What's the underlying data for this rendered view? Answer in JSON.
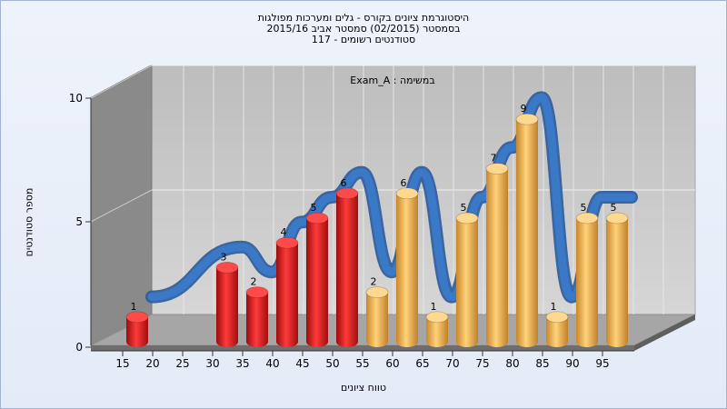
{
  "header": {
    "title_line1": "היסטוגרמת ציונים בקורס - גלים ומערכות מפולגות",
    "title_line2": "בסמסטר  (02/2015)  סמסטר אביב 2015/16",
    "title_line3": "סטודנטים רשומים - 117"
  },
  "chart_data": {
    "type": "bar",
    "annotation": "Exam_A : במשימה",
    "xlabel": "טווח ציונים",
    "ylabel": "מספר סטודנטים",
    "ylim": [
      0,
      10
    ],
    "yticks": [
      0,
      5,
      10
    ],
    "xticks": [
      "15",
      "20",
      "25",
      "30",
      "35",
      "40",
      "45",
      "50",
      "55",
      "60",
      "65",
      "70",
      "75",
      "80",
      "85",
      "90",
      "95"
    ],
    "categories": [
      "15",
      "30",
      "35",
      "40",
      "45",
      "50",
      "55",
      "60",
      "65",
      "70",
      "75",
      "80",
      "85",
      "90",
      "95"
    ],
    "values": [
      1,
      3,
      2,
      4,
      5,
      6,
      2,
      6,
      1,
      5,
      7,
      9,
      1,
      5,
      5
    ],
    "bar_colors": [
      "red",
      "red",
      "red",
      "red",
      "red",
      "red",
      "gold",
      "gold",
      "gold",
      "gold",
      "gold",
      "gold",
      "gold",
      "gold",
      "gold"
    ],
    "colors": {
      "red": "#e01818",
      "gold": "#f0b040",
      "curve": "#3a78c8",
      "wall": "#8c8c8c",
      "plot": "#c8c8c8"
    },
    "grid": true
  }
}
